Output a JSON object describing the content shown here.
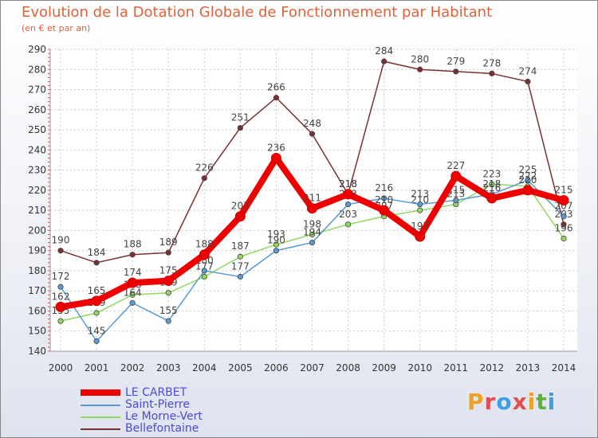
{
  "chart_data": {
    "type": "line",
    "title": "Evolution de la Dotation Globale de Fonctionnement par Habitant",
    "subtitle": "(en € et par an)",
    "xlabel": "",
    "ylabel": "",
    "ylim": [
      140,
      290
    ],
    "yticks": [
      140,
      150,
      160,
      170,
      180,
      190,
      200,
      210,
      220,
      230,
      240,
      250,
      260,
      270,
      280,
      290
    ],
    "grid": true,
    "legend_position": "bottom-left",
    "categories": [
      "2000",
      "2001",
      "2002",
      "2003",
      "2004",
      "2005",
      "2006",
      "2007",
      "2008",
      "2009",
      "2010",
      "2011",
      "2012",
      "2013",
      "2014"
    ],
    "series": [
      {
        "name": "Bellefontaine",
        "color": "#7a3030",
        "values": [
          190,
          184,
          188,
          189,
          226,
          251,
          266,
          248,
          218,
          284,
          280,
          279,
          278,
          274,
          203
        ]
      },
      {
        "name": "Le Morne-Vert",
        "color": "#90d860",
        "values": [
          155,
          159,
          168,
          169,
          177,
          187,
          193,
          198,
          203,
          207,
          210,
          213,
          223,
          222,
          196
        ]
      },
      {
        "name": "Saint-Pierre",
        "color": "#5a9ad0",
        "values": [
          172,
          145,
          164,
          155,
          180,
          177,
          190,
          194,
          213,
          216,
          213,
          215,
          218,
          225,
          207
        ]
      },
      {
        "name": "LE CARBET",
        "color": "#ee0000",
        "values": [
          162,
          165,
          174,
          175,
          188,
          207,
          236,
          211,
          218,
          210,
          197,
          227,
          216,
          220,
          215
        ]
      }
    ]
  },
  "legend": {
    "items": [
      {
        "label": "LE CARBET",
        "color": "#ee0000"
      },
      {
        "label": "Saint-Pierre",
        "color": "#5a9ad0"
      },
      {
        "label": "Le Morne-Vert",
        "color": "#90d860"
      },
      {
        "label": "Bellefontaine",
        "color": "#7a3030"
      }
    ]
  },
  "brand": {
    "letters": [
      "P",
      "r",
      "o",
      "x",
      "i",
      "t",
      "i"
    ]
  }
}
